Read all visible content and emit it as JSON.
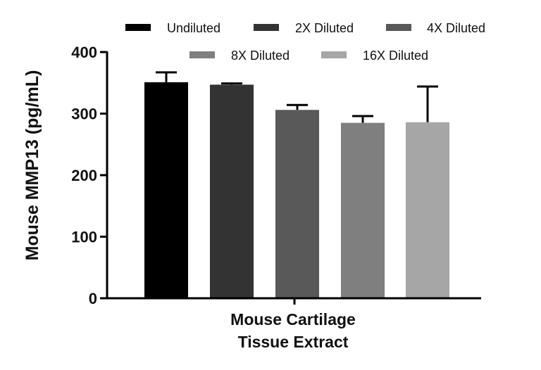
{
  "chart_data": {
    "type": "bar",
    "categories": [
      "Mouse Cartilage Tissue Extract"
    ],
    "series": [
      {
        "name": "Undiluted",
        "values": [
          351
        ],
        "error": [
          16
        ],
        "color": "#000000"
      },
      {
        "name": "2X Diluted",
        "values": [
          347
        ],
        "error": [
          2
        ],
        "color": "#333333"
      },
      {
        "name": "4X Diluted",
        "values": [
          306
        ],
        "error": [
          8
        ],
        "color": "#595959"
      },
      {
        "name": "8X Diluted",
        "values": [
          285
        ],
        "error": [
          11
        ],
        "color": "#7f7f7f"
      },
      {
        "name": "16X Diluted",
        "values": [
          286
        ],
        "error": [
          58
        ],
        "color": "#a6a6a6"
      }
    ],
    "title": "",
    "xlabel_lines": [
      "Mouse Cartilage",
      "Tissue Extract"
    ],
    "ylabel": "Mouse  MMP13 (pg/mL)",
    "ylim": [
      0,
      400
    ],
    "yticks": [
      0,
      100,
      200,
      300,
      400
    ],
    "ytick_labels": [
      "0",
      "100",
      "200",
      "300",
      "400"
    ],
    "legend_position": "top"
  }
}
